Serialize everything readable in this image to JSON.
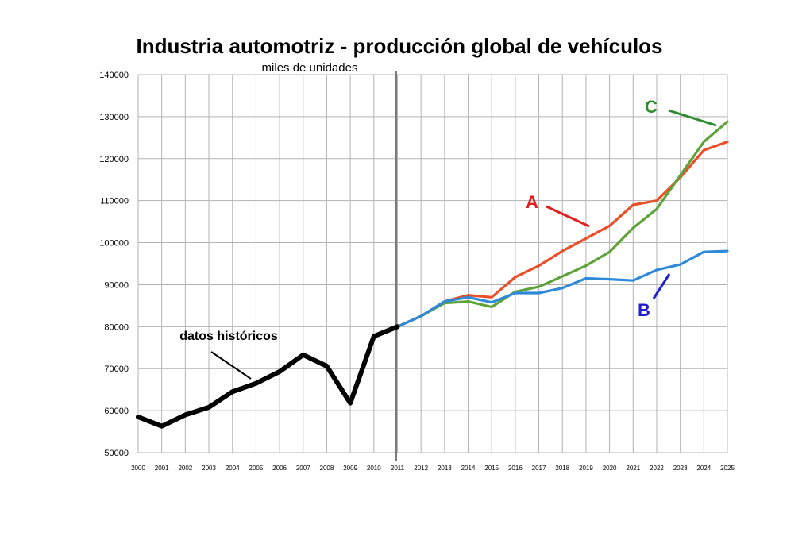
{
  "chart_data": {
    "type": "line",
    "title": "Industria automotriz - producción global de vehículos",
    "subtitle": "miles de unidades",
    "xlabel": "",
    "ylabel": "",
    "ylim": [
      50000,
      140000
    ],
    "grid": true,
    "x": [
      "2000",
      "2001",
      "2002",
      "2003",
      "2004",
      "2005",
      "2006",
      "2007",
      "2008",
      "2009",
      "2010",
      "2011",
      "2012",
      "2013",
      "2014",
      "2015",
      "2016",
      "2017",
      "2018",
      "2019",
      "2020",
      "2021",
      "2022",
      "2023",
      "2024",
      "2025"
    ],
    "yticks": [
      "50000",
      "60000",
      "70000",
      "80000",
      "90000",
      "100000",
      "110000",
      "120000",
      "130000",
      "140000"
    ],
    "divider_at": "2011",
    "series": [
      {
        "name": "datos históricos",
        "color": "#000000",
        "x": [
          "2000",
          "2001",
          "2002",
          "2003",
          "2004",
          "2005",
          "2006",
          "2007",
          "2008",
          "2009",
          "2010",
          "2011"
        ],
        "values": [
          58500,
          56300,
          59000,
          60800,
          64500,
          66500,
          69300,
          73300,
          70600,
          61800,
          77700,
          80000
        ]
      },
      {
        "name": "A",
        "color": "#e8502a",
        "x": [
          "2011",
          "2012",
          "2013",
          "2014",
          "2015",
          "2016",
          "2017",
          "2018",
          "2019",
          "2020",
          "2021",
          "2022",
          "2023",
          "2024",
          "2025"
        ],
        "values": [
          80000,
          82500,
          86000,
          87500,
          87000,
          91800,
          94500,
          98000,
          101000,
          104000,
          109000,
          110000,
          115500,
          122000,
          124000
        ]
      },
      {
        "name": "B",
        "color": "#2e8ad8",
        "x": [
          "2011",
          "2012",
          "2013",
          "2014",
          "2015",
          "2016",
          "2017",
          "2018",
          "2019",
          "2020",
          "2021",
          "2022",
          "2023",
          "2024",
          "2025"
        ],
        "values": [
          80000,
          82500,
          86000,
          87000,
          85800,
          88000,
          88000,
          89200,
          91500,
          91300,
          91000,
          93500,
          94800,
          97800,
          98000
        ]
      },
      {
        "name": "C",
        "color": "#5ea33a",
        "x": [
          "2011",
          "2012",
          "2013",
          "2014",
          "2015",
          "2016",
          "2017",
          "2018",
          "2019",
          "2020",
          "2021",
          "2022",
          "2023",
          "2024",
          "2025"
        ],
        "values": [
          80000,
          82500,
          85600,
          86000,
          84700,
          88300,
          89500,
          92000,
          94500,
          97800,
          103500,
          108000,
          116000,
          124000,
          128800
        ]
      }
    ],
    "annotations": [
      {
        "label": "datos históricos",
        "color": "#000000"
      },
      {
        "label": "A",
        "color": "#e02020"
      },
      {
        "label": "B",
        "color": "#1f1fd0"
      },
      {
        "label": "C",
        "color": "#2e8b2e"
      }
    ]
  }
}
